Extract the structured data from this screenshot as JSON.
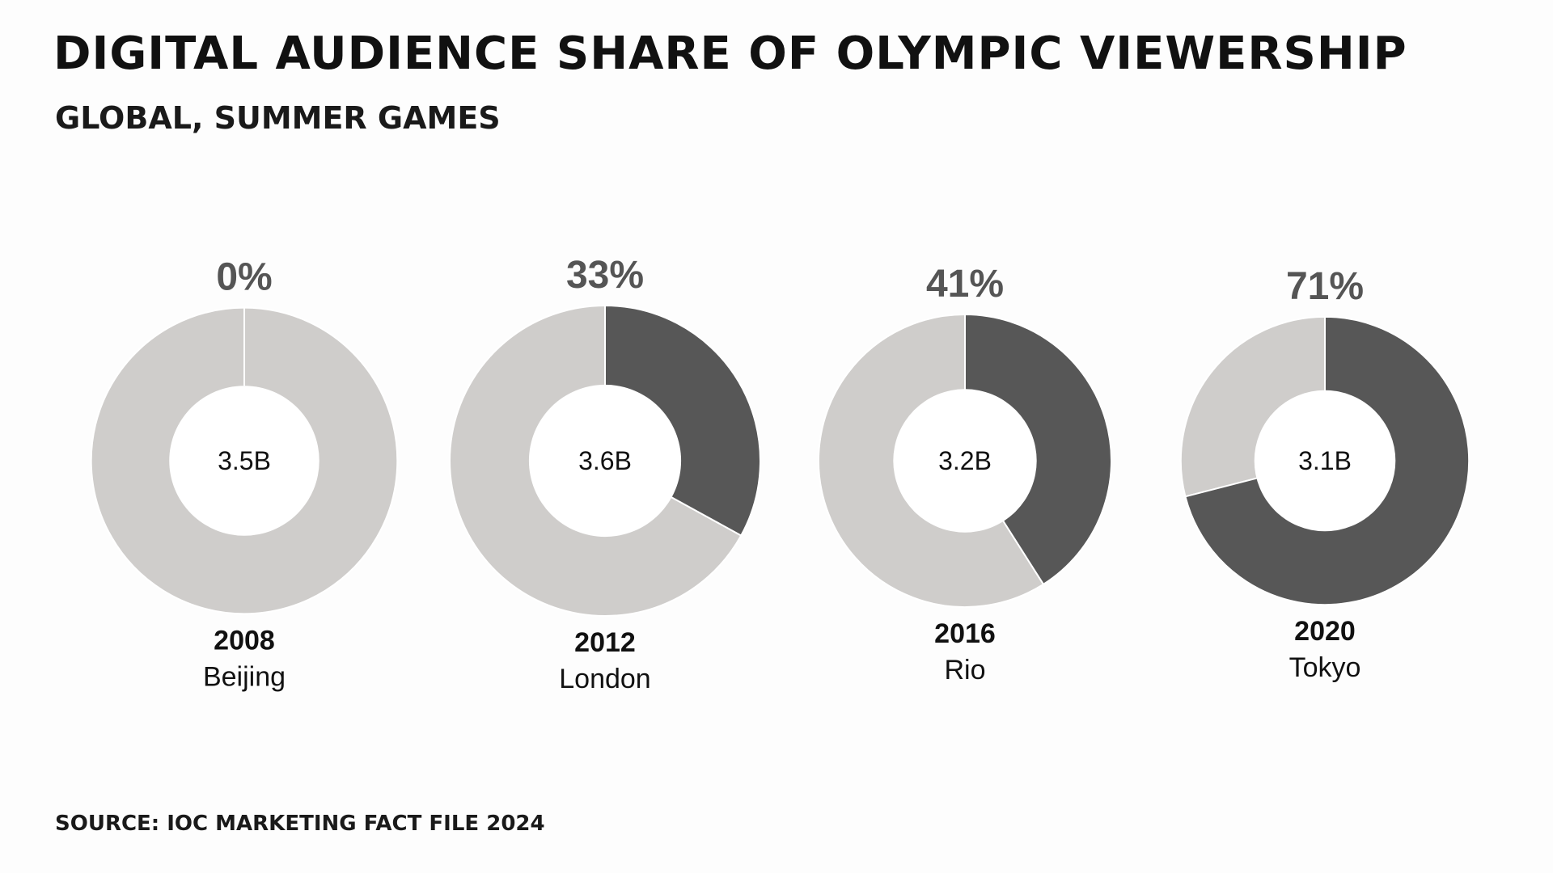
{
  "header": {
    "title": "DIGITAL AUDIENCE SHARE OF OLYMPIC VIEWERSHIP",
    "subtitle": "GLOBAL, SUMMER GAMES"
  },
  "footer": {
    "source": "SOURCE: IOC MARKETING FACT FILE 2024"
  },
  "chart_data": {
    "type": "pie",
    "variant": "donut",
    "title": "DIGITAL AUDIENCE SHARE OF OLYMPIC VIEWERSHIP",
    "subtitle": "GLOBAL, SUMMER GAMES",
    "colors": {
      "digital": "#575757",
      "remainder": "#cfcdcb",
      "percent_label": "#555555",
      "text": "#111111",
      "hole": "#ffffff"
    },
    "items": [
      {
        "year": "2008",
        "city": "Beijing",
        "digital_share": 0,
        "share_label": "0%",
        "total_audience": 3.5,
        "total_label": "3.5B"
      },
      {
        "year": "2012",
        "city": "London",
        "digital_share": 33,
        "share_label": "33%",
        "total_audience": 3.6,
        "total_label": "3.6B"
      },
      {
        "year": "2016",
        "city": "Rio",
        "digital_share": 41,
        "share_label": "41%",
        "total_audience": 3.2,
        "total_label": "3.2B"
      },
      {
        "year": "2020",
        "city": "Tokyo",
        "digital_share": 71,
        "share_label": "71%",
        "total_audience": 3.1,
        "total_label": "3.1B"
      }
    ]
  }
}
